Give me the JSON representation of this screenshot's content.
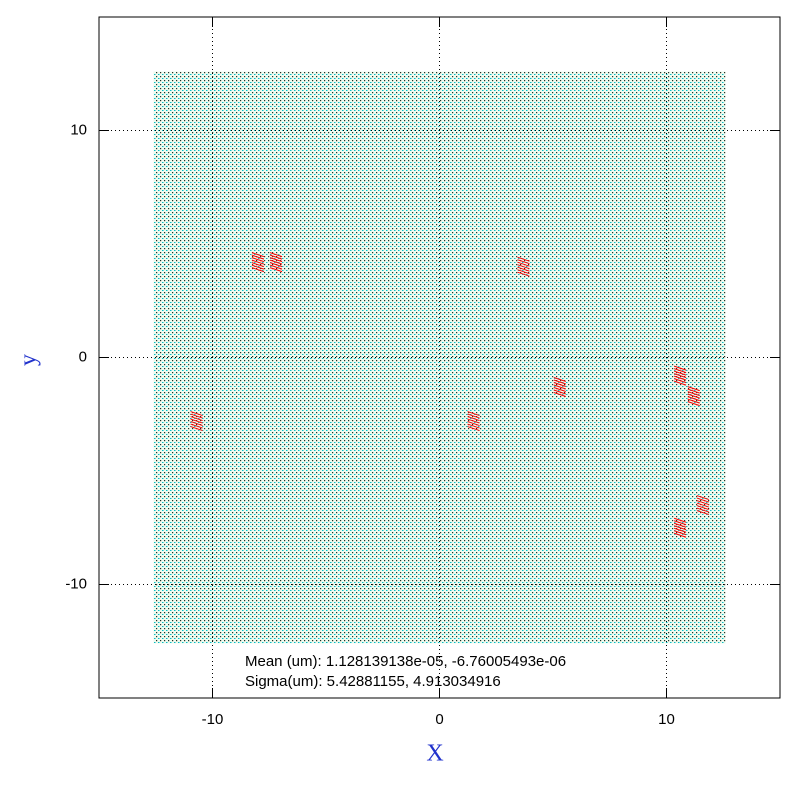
{
  "chart_data": {
    "type": "quiver",
    "xlabel": "X",
    "ylabel": "y",
    "xlim": [
      -15,
      15
    ],
    "ylim": [
      -15,
      15
    ],
    "xticks": [
      -10,
      0,
      10
    ],
    "yticks": [
      -10,
      0,
      10
    ],
    "grid": true,
    "field_extent": {
      "x": [
        -12.6,
        12.6
      ],
      "y": [
        -12.6,
        12.6
      ]
    },
    "field_colors": [
      "#00bcd4",
      "#222222",
      "#33cc33"
    ],
    "highlights": {
      "color": "#ff0000",
      "x": [
        -8,
        -7.2,
        3.7,
        5.3,
        1.5,
        10.6,
        11.2,
        10.6,
        11.6,
        -10.7
      ],
      "y": [
        4.2,
        4.2,
        4,
        -1.3,
        -2.8,
        -0.8,
        -1.7,
        -7.5,
        -6.5,
        -2.8
      ]
    },
    "annotations": [
      "Mean (um): 1.128139138e-05, -6.76005493e-06",
      "Sigma(um): 5.42881155, 4.913034916"
    ]
  }
}
